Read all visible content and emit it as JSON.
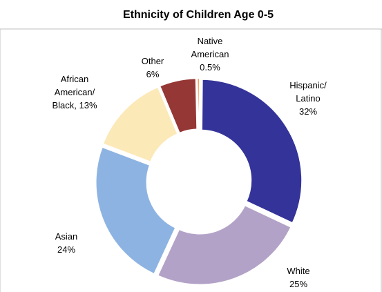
{
  "chart_data": {
    "type": "pie",
    "donut": true,
    "title": "Ethnicity of Children Age 0-5",
    "slices": [
      {
        "label_lines": [
          "Hispanic/",
          "Latino",
          "32%"
        ],
        "value": 32,
        "color": "#333399"
      },
      {
        "label_lines": [
          "White",
          "25%"
        ],
        "value": 25,
        "color": "#b3a2c7"
      },
      {
        "label_lines": [
          "Asian",
          "24%"
        ],
        "value": 24,
        "color": "#8db3e2"
      },
      {
        "label_lines": [
          "African",
          "American/",
          "Black, 13%"
        ],
        "value": 13,
        "color": "#fce9b8"
      },
      {
        "label_lines": [
          "Other",
          "6%"
        ],
        "value": 6,
        "color": "#953735"
      },
      {
        "label_lines": [
          "Native",
          "American",
          "0.5%"
        ],
        "value": 0.5,
        "color": "#f79646"
      }
    ],
    "legend": "none"
  }
}
